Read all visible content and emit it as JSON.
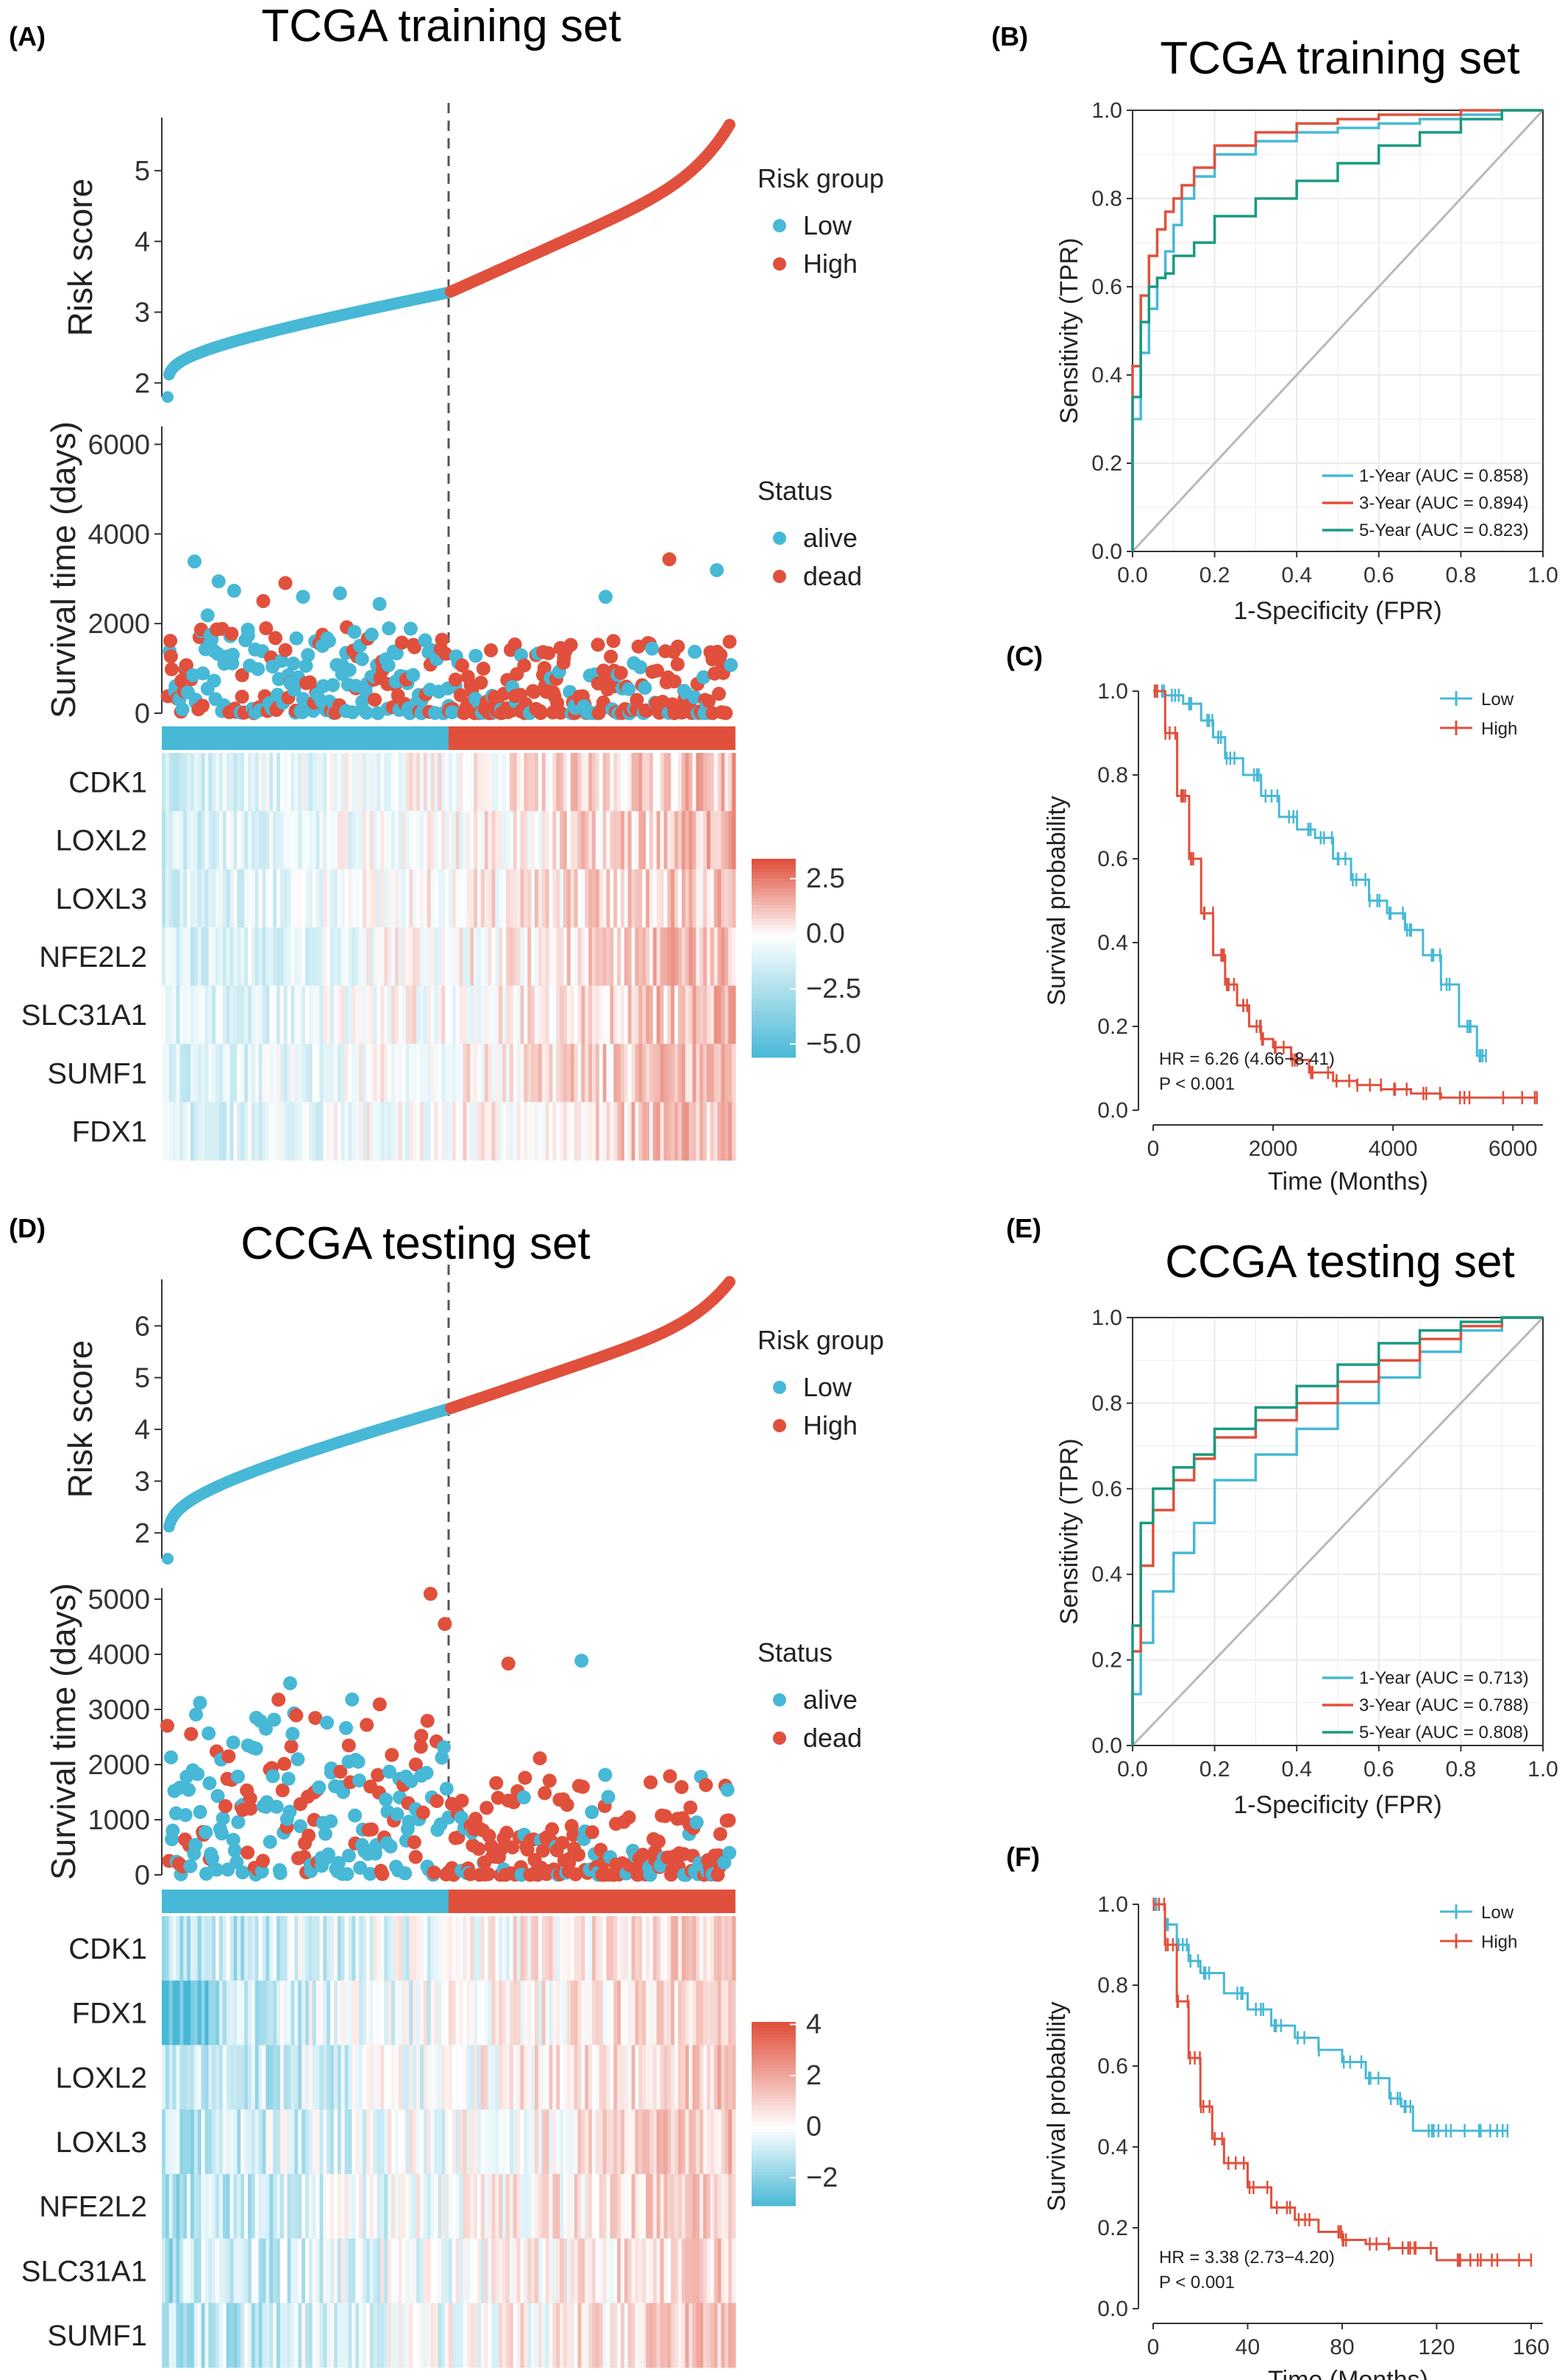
{
  "panels": {
    "A": {
      "letter": "(A)",
      "title": "TCGA training set"
    },
    "B": {
      "letter": "(B)",
      "title": "TCGA training set"
    },
    "C": {
      "letter": "(C)"
    },
    "D": {
      "letter": "(D)",
      "title": "CCGA testing set"
    },
    "E": {
      "letter": "(E)",
      "title": "CCGA testing set"
    },
    "F": {
      "letter": "(F)"
    }
  },
  "colors": {
    "low": "#47b8d6",
    "high": "#e0503c",
    "teal": "#1a9a80",
    "diag": "#b8b8b8",
    "grid": "#ebebeb"
  },
  "chart_data": [
    {
      "id": "A-risk",
      "type": "scatter",
      "ylabel": "Risk score",
      "yticks": [
        2,
        3,
        4,
        5
      ],
      "ylim": [
        1.8,
        5.75
      ],
      "n": 400,
      "cutoff_fraction": 0.5,
      "curve": {
        "start": 1.8,
        "at_cutoff": 3.28,
        "end": 5.65
      },
      "legend": {
        "title": "Risk group",
        "items": [
          "Low",
          "High"
        ]
      }
    },
    {
      "id": "A-survival",
      "type": "scatter",
      "ylabel": "Survival time (days)",
      "yticks": [
        0,
        2000,
        4000,
        6000
      ],
      "ylim": [
        0,
        6400
      ],
      "legend": {
        "title": "Status",
        "items": [
          "alive",
          "dead"
        ]
      }
    },
    {
      "id": "A-heatmap",
      "type": "heatmap",
      "genes": [
        "CDK1",
        "LOXL2",
        "LOXL3",
        "NFE2L2",
        "SLC31A1",
        "SUMF1",
        "FDX1"
      ],
      "scale_ticks": [
        "2.5",
        "0.0",
        "−2.5",
        "−5.0"
      ],
      "scale_range": [
        -5.6,
        3.4
      ]
    },
    {
      "id": "B-roc",
      "type": "line",
      "xlabel": "1-Specificity (FPR)",
      "ylabel": "Sensitivity (TPR)",
      "ticks": [
        "0.0",
        "0.2",
        "0.4",
        "0.6",
        "0.8",
        "1.0"
      ],
      "series": [
        {
          "name": "1-Year (AUC = 0.858)",
          "x": [
            0,
            0.02,
            0.04,
            0.06,
            0.08,
            0.1,
            0.12,
            0.15,
            0.2,
            0.3,
            0.4,
            0.5,
            0.6,
            0.7,
            0.8,
            0.9,
            1.0
          ],
          "y": [
            0,
            0.3,
            0.45,
            0.55,
            0.62,
            0.68,
            0.74,
            0.8,
            0.85,
            0.9,
            0.93,
            0.95,
            0.96,
            0.97,
            0.98,
            0.99,
            1.0
          ]
        },
        {
          "name": "3-Year (AUC = 0.894)",
          "x": [
            0,
            0.02,
            0.04,
            0.06,
            0.08,
            0.1,
            0.12,
            0.15,
            0.2,
            0.3,
            0.4,
            0.5,
            0.6,
            0.7,
            0.8,
            0.9,
            1.0
          ],
          "y": [
            0,
            0.42,
            0.58,
            0.67,
            0.73,
            0.77,
            0.8,
            0.83,
            0.87,
            0.92,
            0.95,
            0.97,
            0.98,
            0.99,
            0.99,
            1.0,
            1.0
          ]
        },
        {
          "name": "5-Year (AUC = 0.823)",
          "x": [
            0,
            0.02,
            0.04,
            0.06,
            0.08,
            0.1,
            0.15,
            0.2,
            0.3,
            0.4,
            0.5,
            0.6,
            0.7,
            0.8,
            0.9,
            1.0
          ],
          "y": [
            0,
            0.35,
            0.52,
            0.6,
            0.62,
            0.63,
            0.67,
            0.7,
            0.76,
            0.8,
            0.84,
            0.88,
            0.92,
            0.95,
            0.98,
            1.0
          ]
        }
      ]
    },
    {
      "id": "C-km",
      "type": "line",
      "xlabel": "Time (Months)",
      "ylabel": "Survival probability",
      "xticks": [
        "0",
        "2000",
        "4000",
        "6000"
      ],
      "xlim": [
        0,
        6500
      ],
      "yticks": [
        "0.0",
        "0.2",
        "0.4",
        "0.6",
        "0.8",
        "1.0"
      ],
      "series": [
        {
          "name": "Low",
          "x": [
            0,
            200,
            500,
            800,
            1000,
            1200,
            1500,
            1800,
            2100,
            2400,
            2700,
            3000,
            3300,
            3600,
            3900,
            4200,
            4500,
            4800,
            5100,
            5400,
            5550
          ],
          "y": [
            1.0,
            0.99,
            0.97,
            0.93,
            0.89,
            0.84,
            0.8,
            0.75,
            0.7,
            0.67,
            0.65,
            0.6,
            0.55,
            0.5,
            0.47,
            0.43,
            0.37,
            0.3,
            0.2,
            0.13,
            0.13
          ]
        },
        {
          "name": "High",
          "x": [
            0,
            200,
            400,
            600,
            800,
            1000,
            1200,
            1400,
            1600,
            1800,
            2000,
            2300,
            2600,
            3000,
            3400,
            3800,
            4300,
            4800,
            5500,
            6400
          ],
          "y": [
            1.0,
            0.9,
            0.75,
            0.6,
            0.47,
            0.37,
            0.3,
            0.25,
            0.2,
            0.17,
            0.15,
            0.12,
            0.09,
            0.07,
            0.06,
            0.05,
            0.04,
            0.03,
            0.03,
            0.03
          ]
        }
      ],
      "annotations": [
        "HR = 6.26 (4.66−8.41)",
        "P < 0.001"
      ]
    },
    {
      "id": "D-risk",
      "type": "scatter",
      "ylabel": "Risk score",
      "yticks": [
        2,
        3,
        4,
        5,
        6
      ],
      "ylim": [
        1.5,
        6.9
      ],
      "n": 400,
      "cutoff_fraction": 0.5,
      "curve": {
        "start": 1.5,
        "at_cutoff": 4.4,
        "end": 6.85
      },
      "legend": {
        "title": "Risk group",
        "items": [
          "Low",
          "High"
        ]
      }
    },
    {
      "id": "D-survival",
      "type": "scatter",
      "ylabel": "Survival time (days)",
      "yticks": [
        0,
        1000,
        2000,
        3000,
        4000,
        5000
      ],
      "ylim": [
        0,
        5200
      ],
      "legend": {
        "title": "Status",
        "items": [
          "alive",
          "dead"
        ]
      }
    },
    {
      "id": "D-heatmap",
      "type": "heatmap",
      "genes": [
        "CDK1",
        "FDX1",
        "LOXL2",
        "LOXL3",
        "NFE2L2",
        "SLC31A1",
        "SUMF1"
      ],
      "scale_ticks": [
        "4",
        "2",
        "0",
        "−2"
      ],
      "scale_range": [
        -3.1,
        4.1
      ]
    },
    {
      "id": "E-roc",
      "type": "line",
      "xlabel": "1-Specificity (FPR)",
      "ylabel": "Sensitivity (TPR)",
      "ticks": [
        "0.0",
        "0.2",
        "0.4",
        "0.6",
        "0.8",
        "1.0"
      ],
      "series": [
        {
          "name": "1-Year (AUC = 0.713)",
          "x": [
            0,
            0.02,
            0.05,
            0.1,
            0.15,
            0.2,
            0.3,
            0.4,
            0.5,
            0.6,
            0.7,
            0.8,
            0.9,
            1.0
          ],
          "y": [
            0,
            0.12,
            0.24,
            0.36,
            0.45,
            0.52,
            0.62,
            0.68,
            0.74,
            0.8,
            0.86,
            0.92,
            0.97,
            1.0
          ]
        },
        {
          "name": "3-Year (AUC = 0.788)",
          "x": [
            0,
            0.02,
            0.05,
            0.1,
            0.15,
            0.2,
            0.3,
            0.4,
            0.5,
            0.6,
            0.7,
            0.8,
            0.9,
            1.0
          ],
          "y": [
            0,
            0.22,
            0.42,
            0.55,
            0.62,
            0.67,
            0.72,
            0.76,
            0.8,
            0.85,
            0.9,
            0.95,
            0.98,
            1.0
          ]
        },
        {
          "name": "5-Year (AUC = 0.808)",
          "x": [
            0,
            0.02,
            0.05,
            0.1,
            0.15,
            0.2,
            0.3,
            0.4,
            0.5,
            0.6,
            0.7,
            0.8,
            0.9,
            1.0
          ],
          "y": [
            0,
            0.28,
            0.52,
            0.6,
            0.65,
            0.68,
            0.74,
            0.79,
            0.84,
            0.89,
            0.94,
            0.97,
            0.99,
            1.0
          ]
        }
      ]
    },
    {
      "id": "F-km",
      "type": "line",
      "xlabel": "Time (Months)",
      "ylabel": "Survival probability",
      "xticks": [
        "0",
        "40",
        "80",
        "120",
        "160"
      ],
      "xlim": [
        0,
        165
      ],
      "yticks": [
        "0.0",
        "0.2",
        "0.4",
        "0.6",
        "0.8",
        "1.0"
      ],
      "series": [
        {
          "name": "Low",
          "x": [
            0,
            5,
            10,
            15,
            20,
            30,
            40,
            50,
            60,
            70,
            80,
            90,
            100,
            105,
            110,
            120,
            130,
            140,
            150
          ],
          "y": [
            1.0,
            0.95,
            0.9,
            0.86,
            0.83,
            0.78,
            0.74,
            0.7,
            0.67,
            0.64,
            0.61,
            0.57,
            0.52,
            0.5,
            0.44,
            0.44,
            0.44,
            0.44,
            0.44
          ]
        },
        {
          "name": "High",
          "x": [
            0,
            5,
            10,
            15,
            20,
            25,
            30,
            40,
            50,
            60,
            70,
            80,
            90,
            100,
            110,
            120,
            130,
            140,
            160
          ],
          "y": [
            1.0,
            0.9,
            0.76,
            0.62,
            0.5,
            0.42,
            0.36,
            0.3,
            0.25,
            0.22,
            0.19,
            0.17,
            0.16,
            0.15,
            0.15,
            0.12,
            0.12,
            0.12,
            0.12
          ]
        }
      ],
      "annotations": [
        "HR = 3.38 (2.73−4.20)",
        "P < 0.001"
      ]
    }
  ]
}
